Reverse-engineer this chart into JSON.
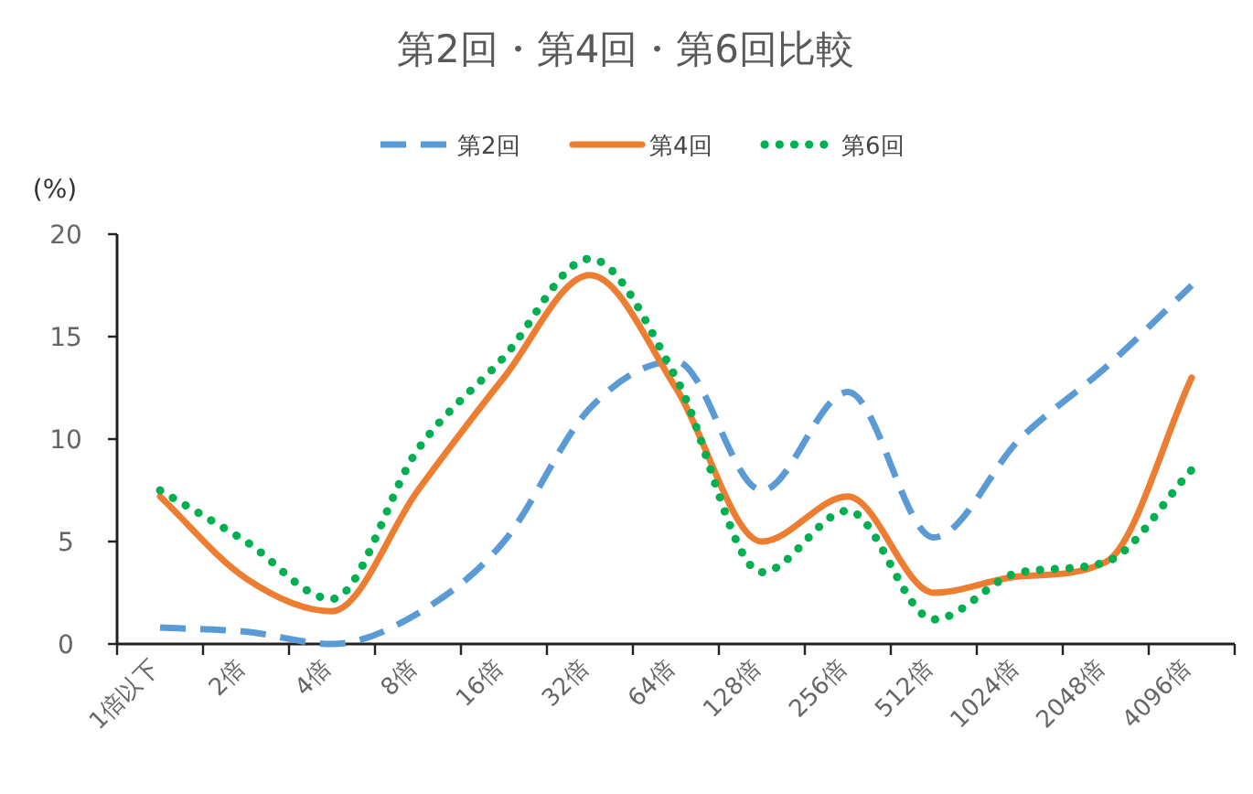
{
  "chart_data": {
    "type": "line",
    "title": "第2回・第4回・第6回比較",
    "ylabel": "(%)",
    "categories": [
      "1倍以下",
      "2倍",
      "4倍",
      "8倍",
      "16倍",
      "32倍",
      "64倍",
      "128倍",
      "256倍",
      "512倍",
      "1024倍",
      "2048倍",
      "4096倍"
    ],
    "series": [
      {
        "name": "第2回",
        "color": "#5b9bd5",
        "line_style": "dashed",
        "values": [
          0.8,
          0.6,
          0,
          1.5,
          5,
          11.5,
          13.8,
          7.5,
          12.3,
          5.2,
          10,
          13.5,
          17.5
        ]
      },
      {
        "name": "第4回",
        "color": "#ed7d31",
        "line_style": "solid",
        "values": [
          7.2,
          3.2,
          1.6,
          7.5,
          13,
          18,
          12.5,
          5,
          7.2,
          2.5,
          3.3,
          4,
          13
        ]
      },
      {
        "name": "第6回",
        "color": "#00b050",
        "line_style": "dotted",
        "values": [
          7.5,
          5,
          2.2,
          9.5,
          14,
          18.8,
          13,
          3.5,
          6.5,
          1.2,
          3.5,
          4,
          8.5
        ]
      }
    ],
    "ylim": [
      0,
      20
    ],
    "yticks": [
      0,
      5,
      10,
      15,
      20
    ],
    "grid": false,
    "legend": "top",
    "marker": "none"
  }
}
